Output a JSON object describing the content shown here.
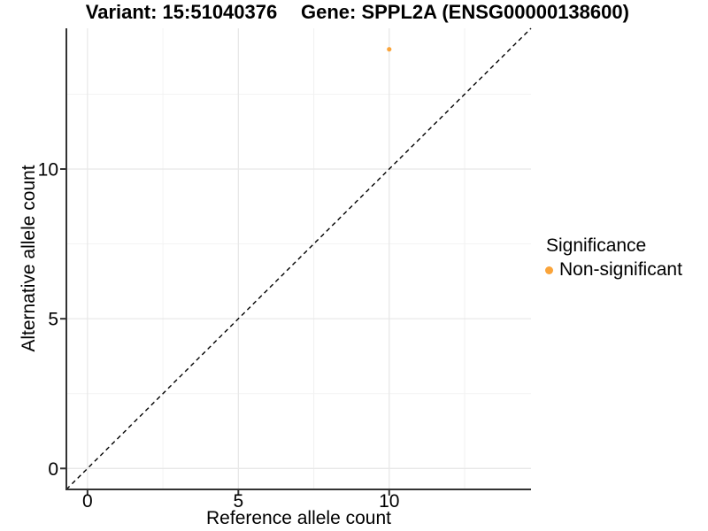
{
  "chart_data": {
    "type": "scatter",
    "titles": {
      "left": "Variant: 15:51040376",
      "right": "Gene: SPPL2A (ENSG00000138600)"
    },
    "xlabel": "Reference allele count",
    "ylabel": "Alternative allele count",
    "xlim": [
      -0.7,
      14.7
    ],
    "ylim": [
      -0.7,
      14.7
    ],
    "xticks": [
      0,
      5,
      10
    ],
    "yticks": [
      0,
      5,
      10
    ],
    "xticks_minor": [
      2.5,
      7.5,
      12.5
    ],
    "yticks_minor": [
      2.5,
      7.5,
      12.5
    ],
    "series": [
      {
        "name": "Non-significant",
        "color": "#FAA43A",
        "points": [
          {
            "x": 10,
            "y": 14
          }
        ]
      }
    ],
    "identity_line": {
      "equation": "y = x",
      "style": "dashed",
      "color": "#000000"
    },
    "legend": {
      "title": "Significance",
      "position": "right",
      "items": [
        {
          "label": "Non-significant",
          "color": "#FAA43A"
        }
      ]
    },
    "grid": {
      "visible": true,
      "major_color": "#E8E8E8",
      "minor_color": "#F2F2F2"
    },
    "axis_color": "#333333",
    "text_color": "#000000",
    "background": "#FFFFFF"
  }
}
